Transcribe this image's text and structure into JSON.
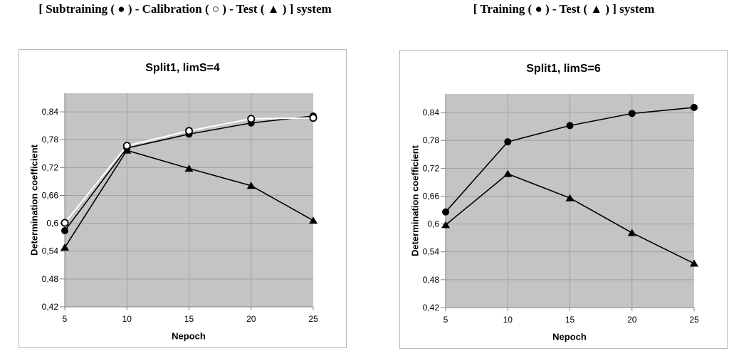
{
  "headers": {
    "left": "[ Subtraining ( ● ) - Calibration ( ○ ) - Test ( ▲ ) ] system",
    "right": "[ Training ( ● ) - Test ( ▲ ) ] system"
  },
  "colors": {
    "plot_bg": "#c4c4c4",
    "grid": "#a0a0a0",
    "axis": "#808080",
    "series_black": "#000000",
    "series_white": "#ffffff"
  },
  "chart_data": [
    {
      "type": "line",
      "title": "Split1, limS=4",
      "xlabel": "Nepoch",
      "ylabel": "Determination coefficient",
      "x": [
        5,
        10,
        15,
        20,
        25
      ],
      "xlim": [
        5,
        25
      ],
      "ylim": [
        0.42,
        0.88
      ],
      "ytick_values": [
        0.42,
        0.48,
        0.54,
        0.6,
        0.66,
        0.72,
        0.78,
        0.84
      ],
      "ytick_labels": [
        "0,42",
        "0,48",
        "0,54",
        "0,6",
        "0,66",
        "0,72",
        "0,78",
        "0,84"
      ],
      "grid": true,
      "legend": "none",
      "series": [
        {
          "name": "Subtraining",
          "marker": "filled-circle",
          "line_color": "#000000",
          "values": [
            0.584,
            0.762,
            0.792,
            0.816,
            0.831
          ]
        },
        {
          "name": "Calibration",
          "marker": "open-circle",
          "line_color": "#ffffff",
          "values": [
            0.601,
            0.767,
            0.799,
            0.825,
            0.827
          ]
        },
        {
          "name": "Test",
          "marker": "filled-triangle",
          "line_color": "#000000",
          "values": [
            0.548,
            0.757,
            0.718,
            0.681,
            0.606
          ]
        }
      ]
    },
    {
      "type": "line",
      "title": "Split1, limS=6",
      "xlabel": "Nepoch",
      "ylabel": "Determination coefficient",
      "x": [
        5,
        10,
        15,
        20,
        25
      ],
      "xlim": [
        5,
        25
      ],
      "ylim": [
        0.42,
        0.88
      ],
      "ytick_values": [
        0.42,
        0.48,
        0.54,
        0.6,
        0.66,
        0.72,
        0.78,
        0.84
      ],
      "ytick_labels": [
        "0,42",
        "0,48",
        "0,54",
        "0,6",
        "0,66",
        "0,72",
        "0,78",
        "0,84"
      ],
      "grid": true,
      "legend": "none",
      "series": [
        {
          "name": "Training",
          "marker": "filled-circle",
          "line_color": "#000000",
          "values": [
            0.626,
            0.777,
            0.812,
            0.838,
            0.851
          ]
        },
        {
          "name": "Test",
          "marker": "filled-triangle",
          "line_color": "#000000",
          "values": [
            0.598,
            0.708,
            0.656,
            0.581,
            0.515
          ]
        }
      ]
    }
  ]
}
